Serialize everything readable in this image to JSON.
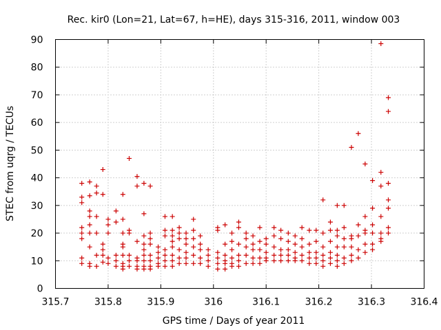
{
  "chart_data": {
    "type": "scatter",
    "title": "Rec. kir0 (Lon=21, Lat=67, h=HE), days 315-316, 2011, window 003",
    "xlabel": "GPS time / Days of year 2011",
    "ylabel": "STEC from uqrg / TECUs",
    "xlim": [
      315.7,
      316.4
    ],
    "ylim": [
      0,
      90
    ],
    "xticks": [
      "315.7",
      "315.8",
      "315.9",
      "316",
      "316.1",
      "316.2",
      "316.3",
      "316.4"
    ],
    "yticks": [
      "0",
      "10",
      "20",
      "30",
      "40",
      "50",
      "60",
      "70",
      "80",
      "90"
    ],
    "grid": true,
    "marker": "plus",
    "color": "#cc0000",
    "points": [
      [
        315.75,
        38
      ],
      [
        315.75,
        33
      ],
      [
        315.75,
        31
      ],
      [
        315.75,
        22
      ],
      [
        315.75,
        20
      ],
      [
        315.75,
        18
      ],
      [
        315.75,
        11
      ],
      [
        315.75,
        9
      ],
      [
        315.765,
        38.5
      ],
      [
        315.765,
        33.5
      ],
      [
        315.765,
        28
      ],
      [
        315.765,
        26
      ],
      [
        315.765,
        23
      ],
      [
        315.765,
        20
      ],
      [
        315.765,
        15
      ],
      [
        315.765,
        9
      ],
      [
        315.765,
        8
      ],
      [
        315.778,
        37
      ],
      [
        315.778,
        34.5
      ],
      [
        315.778,
        26
      ],
      [
        315.778,
        20
      ],
      [
        315.778,
        12
      ],
      [
        315.778,
        8
      ],
      [
        315.79,
        43
      ],
      [
        315.79,
        34
      ],
      [
        315.79,
        16
      ],
      [
        315.79,
        14
      ],
      [
        315.79,
        12
      ],
      [
        315.79,
        9.5
      ],
      [
        315.8,
        25
      ],
      [
        315.8,
        23
      ],
      [
        315.8,
        20
      ],
      [
        315.8,
        11
      ],
      [
        315.8,
        9
      ],
      [
        315.815,
        28
      ],
      [
        315.815,
        24
      ],
      [
        315.815,
        12
      ],
      [
        315.815,
        10
      ],
      [
        315.815,
        8
      ],
      [
        315.828,
        34
      ],
      [
        315.828,
        25
      ],
      [
        315.828,
        20
      ],
      [
        315.828,
        16
      ],
      [
        315.828,
        15
      ],
      [
        315.828,
        12
      ],
      [
        315.828,
        9
      ],
      [
        315.828,
        8
      ],
      [
        315.828,
        7
      ],
      [
        315.84,
        47
      ],
      [
        315.84,
        21
      ],
      [
        315.84,
        20
      ],
      [
        315.84,
        12
      ],
      [
        315.84,
        10
      ],
      [
        315.84,
        8
      ],
      [
        315.855,
        40.5
      ],
      [
        315.855,
        37
      ],
      [
        315.855,
        17
      ],
      [
        315.855,
        11
      ],
      [
        315.855,
        10
      ],
      [
        315.855,
        8
      ],
      [
        315.855,
        7
      ],
      [
        315.868,
        38
      ],
      [
        315.868,
        27
      ],
      [
        315.868,
        19
      ],
      [
        315.868,
        16
      ],
      [
        315.868,
        14
      ],
      [
        315.868,
        12
      ],
      [
        315.868,
        10
      ],
      [
        315.868,
        8
      ],
      [
        315.868,
        7
      ],
      [
        315.88,
        37
      ],
      [
        315.88,
        20
      ],
      [
        315.88,
        18
      ],
      [
        315.88,
        16
      ],
      [
        315.88,
        12
      ],
      [
        315.88,
        10
      ],
      [
        315.88,
        8
      ],
      [
        315.88,
        7
      ],
      [
        315.895,
        15
      ],
      [
        315.895,
        13
      ],
      [
        315.895,
        11
      ],
      [
        315.895,
        9
      ],
      [
        315.895,
        8
      ],
      [
        315.908,
        26
      ],
      [
        315.908,
        21
      ],
      [
        315.908,
        19
      ],
      [
        315.908,
        14
      ],
      [
        315.908,
        12
      ],
      [
        315.908,
        10
      ],
      [
        315.908,
        8
      ],
      [
        315.922,
        26
      ],
      [
        315.922,
        21
      ],
      [
        315.922,
        19
      ],
      [
        315.922,
        17
      ],
      [
        315.922,
        15
      ],
      [
        315.922,
        12
      ],
      [
        315.922,
        10
      ],
      [
        315.922,
        8
      ],
      [
        315.935,
        22
      ],
      [
        315.935,
        20
      ],
      [
        315.935,
        18
      ],
      [
        315.935,
        14
      ],
      [
        315.935,
        11
      ],
      [
        315.935,
        9
      ],
      [
        315.948,
        20
      ],
      [
        315.948,
        18
      ],
      [
        315.948,
        16
      ],
      [
        315.948,
        13
      ],
      [
        315.948,
        11
      ],
      [
        315.948,
        9
      ],
      [
        315.962,
        25
      ],
      [
        315.962,
        21
      ],
      [
        315.962,
        18
      ],
      [
        315.962,
        15
      ],
      [
        315.962,
        12
      ],
      [
        315.962,
        9
      ],
      [
        315.975,
        19
      ],
      [
        315.975,
        16
      ],
      [
        315.975,
        14
      ],
      [
        315.975,
        11
      ],
      [
        315.975,
        9
      ],
      [
        315.99,
        14
      ],
      [
        315.99,
        12
      ],
      [
        315.99,
        10
      ],
      [
        315.99,
        8
      ],
      [
        316.008,
        22
      ],
      [
        316.008,
        21
      ],
      [
        316.008,
        13
      ],
      [
        316.008,
        11
      ],
      [
        316.008,
        9
      ],
      [
        316.008,
        7
      ],
      [
        316.022,
        23
      ],
      [
        316.022,
        16
      ],
      [
        316.022,
        12
      ],
      [
        316.022,
        10
      ],
      [
        316.022,
        9
      ],
      [
        316.022,
        7
      ],
      [
        316.035,
        20
      ],
      [
        316.035,
        17
      ],
      [
        316.035,
        14
      ],
      [
        316.035,
        11
      ],
      [
        316.035,
        9
      ],
      [
        316.035,
        8
      ],
      [
        316.048,
        24
      ],
      [
        316.048,
        22
      ],
      [
        316.048,
        16
      ],
      [
        316.048,
        12
      ],
      [
        316.048,
        10
      ],
      [
        316.048,
        8
      ],
      [
        316.062,
        20
      ],
      [
        316.062,
        18
      ],
      [
        316.062,
        15
      ],
      [
        316.062,
        12
      ],
      [
        316.062,
        9
      ],
      [
        316.075,
        19
      ],
      [
        316.075,
        16
      ],
      [
        316.075,
        14
      ],
      [
        316.075,
        11
      ],
      [
        316.075,
        9
      ],
      [
        316.088,
        22
      ],
      [
        316.088,
        17
      ],
      [
        316.088,
        14
      ],
      [
        316.088,
        11
      ],
      [
        316.088,
        9
      ],
      [
        316.1,
        18
      ],
      [
        316.1,
        16
      ],
      [
        316.1,
        13
      ],
      [
        316.1,
        11
      ],
      [
        316.1,
        10
      ],
      [
        316.115,
        22
      ],
      [
        316.115,
        19
      ],
      [
        316.115,
        15
      ],
      [
        316.115,
        12
      ],
      [
        316.115,
        10
      ],
      [
        316.128,
        21
      ],
      [
        316.128,
        18
      ],
      [
        316.128,
        14
      ],
      [
        316.128,
        12
      ],
      [
        316.128,
        10
      ],
      [
        316.142,
        20
      ],
      [
        316.142,
        17
      ],
      [
        316.142,
        14
      ],
      [
        316.142,
        12
      ],
      [
        316.142,
        10
      ],
      [
        316.155,
        19
      ],
      [
        316.155,
        16
      ],
      [
        316.155,
        13
      ],
      [
        316.155,
        11
      ],
      [
        316.155,
        10
      ],
      [
        316.168,
        22
      ],
      [
        316.168,
        18
      ],
      [
        316.168,
        15
      ],
      [
        316.168,
        12
      ],
      [
        316.168,
        10
      ],
      [
        316.182,
        21
      ],
      [
        316.182,
        16
      ],
      [
        316.182,
        13
      ],
      [
        316.182,
        11
      ],
      [
        316.182,
        9
      ],
      [
        316.195,
        21
      ],
      [
        316.195,
        17
      ],
      [
        316.195,
        13
      ],
      [
        316.195,
        11
      ],
      [
        316.195,
        9
      ],
      [
        316.208,
        32
      ],
      [
        316.208,
        20
      ],
      [
        316.208,
        15
      ],
      [
        316.208,
        12
      ],
      [
        316.208,
        10
      ],
      [
        316.208,
        8
      ],
      [
        316.222,
        24
      ],
      [
        316.222,
        21
      ],
      [
        316.222,
        17
      ],
      [
        316.222,
        13
      ],
      [
        316.222,
        11
      ],
      [
        316.222,
        9
      ],
      [
        316.235,
        30
      ],
      [
        316.235,
        21
      ],
      [
        316.235,
        19
      ],
      [
        316.235,
        15
      ],
      [
        316.235,
        12
      ],
      [
        316.235,
        10
      ],
      [
        316.235,
        8
      ],
      [
        316.248,
        30
      ],
      [
        316.248,
        22
      ],
      [
        316.248,
        18
      ],
      [
        316.248,
        15
      ],
      [
        316.248,
        11
      ],
      [
        316.248,
        9
      ],
      [
        316.262,
        51
      ],
      [
        316.262,
        19
      ],
      [
        316.262,
        18
      ],
      [
        316.262,
        15
      ],
      [
        316.262,
        12
      ],
      [
        316.262,
        10
      ],
      [
        316.275,
        56
      ],
      [
        316.275,
        23
      ],
      [
        316.275,
        19
      ],
      [
        316.275,
        14
      ],
      [
        316.275,
        11
      ],
      [
        316.288,
        45
      ],
      [
        316.288,
        26
      ],
      [
        316.288,
        21
      ],
      [
        316.288,
        20
      ],
      [
        316.288,
        16
      ],
      [
        316.288,
        13
      ],
      [
        316.302,
        39
      ],
      [
        316.302,
        29
      ],
      [
        316.302,
        23
      ],
      [
        316.302,
        20
      ],
      [
        316.302,
        16
      ],
      [
        316.302,
        14
      ],
      [
        316.318,
        88.5
      ],
      [
        316.318,
        42
      ],
      [
        316.318,
        37
      ],
      [
        316.318,
        26
      ],
      [
        316.318,
        20
      ],
      [
        316.318,
        18
      ],
      [
        316.318,
        17
      ],
      [
        316.332,
        69
      ],
      [
        316.332,
        64
      ],
      [
        316.332,
        38
      ],
      [
        316.332,
        32
      ],
      [
        316.332,
        29
      ],
      [
        316.332,
        22
      ],
      [
        316.332,
        20
      ]
    ]
  }
}
